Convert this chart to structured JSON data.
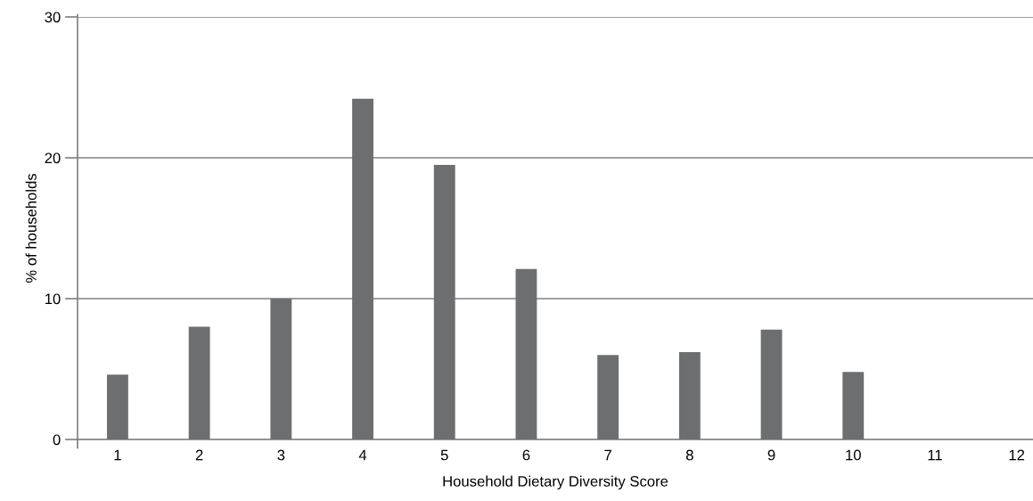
{
  "chart_data": {
    "type": "bar",
    "xlabel": "Household Dietary Diversity Score",
    "ylabel": "% of households",
    "categories": [
      "1",
      "2",
      "3",
      "4",
      "5",
      "6",
      "7",
      "8",
      "9",
      "10",
      "11",
      "12"
    ],
    "values": [
      4.6,
      8.0,
      10.0,
      24.2,
      19.5,
      12.1,
      6.0,
      6.2,
      7.8,
      4.8,
      0,
      0
    ],
    "color": "#6d6e70",
    "ylim": [
      0,
      30
    ],
    "yticks": [
      0,
      10,
      20,
      30
    ],
    "grid": "y",
    "legend": false
  }
}
